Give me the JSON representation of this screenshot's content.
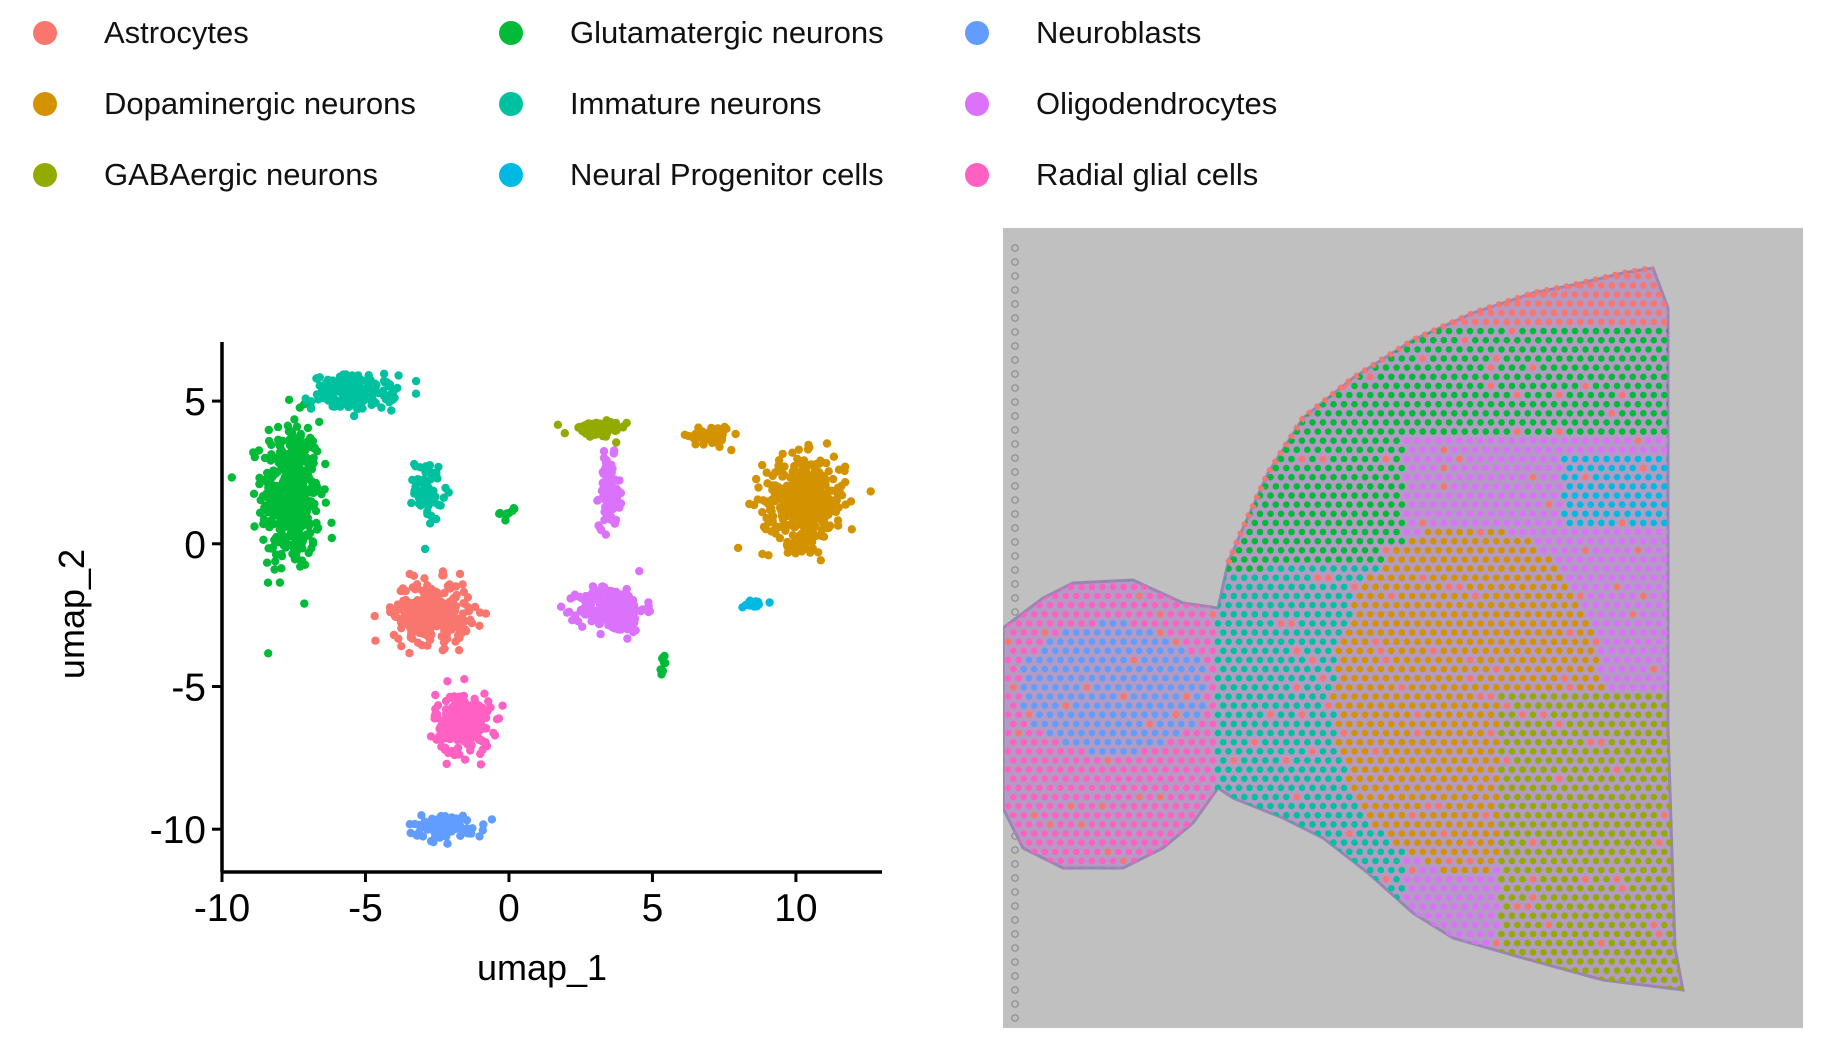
{
  "legend": {
    "placement": "top",
    "columns": 3,
    "items": [
      {
        "label": "Astrocytes",
        "color": "#F8766D"
      },
      {
        "label": "Dopaminergic neurons",
        "color": "#D39200"
      },
      {
        "label": "GABAergic neurons",
        "color": "#93AA00"
      },
      {
        "label": "Glutamatergic neurons",
        "color": "#00BA38"
      },
      {
        "label": "Immature neurons",
        "color": "#00C19F"
      },
      {
        "label": "Neural Progenitor cells",
        "color": "#00B9E3"
      },
      {
        "label": "Neuroblasts",
        "color": "#619CFF"
      },
      {
        "label": "Oligodendrocytes",
        "color": "#DB72FB"
      },
      {
        "label": "Radial glial cells",
        "color": "#FF61C3"
      }
    ]
  },
  "chart_data": [
    {
      "type": "scatter",
      "title": "",
      "xlabel": "umap_1",
      "ylabel": "umap_2",
      "xlim": [
        -10,
        13
      ],
      "ylim": [
        -11.5,
        7
      ],
      "xticks": [
        "-10",
        "-5",
        "0",
        "5",
        "10"
      ],
      "yticks": [
        "-10",
        "-5",
        "0",
        "5"
      ],
      "grid": false,
      "clusters": [
        {
          "name": "Glutamatergic neurons",
          "center": [
            -7.6,
            1.7
          ],
          "spread": [
            0.85,
            2.2
          ],
          "n": 420
        },
        {
          "name": "Glutamatergic neurons",
          "center": [
            0.0,
            1.1
          ],
          "spread": [
            0.25,
            0.2
          ],
          "n": 10
        },
        {
          "name": "Glutamatergic neurons",
          "center": [
            5.4,
            -4.2
          ],
          "spread": [
            0.15,
            0.25
          ],
          "n": 8
        },
        {
          "name": "Immature neurons",
          "center": [
            -5.4,
            5.3
          ],
          "spread": [
            1.2,
            0.5
          ],
          "n": 170
        },
        {
          "name": "Immature neurons",
          "center": [
            -2.8,
            1.9
          ],
          "spread": [
            0.4,
            0.9
          ],
          "n": 60
        },
        {
          "name": "GABAergic neurons",
          "center": [
            3.0,
            4.0
          ],
          "spread": [
            0.9,
            0.25
          ],
          "n": 60
        },
        {
          "name": "Oligodendrocytes",
          "center": [
            3.5,
            1.8
          ],
          "spread": [
            0.3,
            1.0
          ],
          "n": 90
        },
        {
          "name": "Oligodendrocytes",
          "center": [
            3.6,
            -2.3
          ],
          "spread": [
            0.95,
            0.65
          ],
          "n": 240
        },
        {
          "name": "Dopaminergic neurons",
          "center": [
            10.3,
            1.5
          ],
          "spread": [
            1.2,
            1.3
          ],
          "n": 380
        },
        {
          "name": "Dopaminergic neurons",
          "center": [
            7.0,
            3.8
          ],
          "spread": [
            0.6,
            0.3
          ],
          "n": 50
        },
        {
          "name": "Astrocytes",
          "center": [
            -2.7,
            -2.4
          ],
          "spread": [
            1.1,
            0.9
          ],
          "n": 270
        },
        {
          "name": "Radial glial cells",
          "center": [
            -1.6,
            -6.3
          ],
          "spread": [
            0.8,
            0.9
          ],
          "n": 230
        },
        {
          "name": "Neuroblasts",
          "center": [
            -2.2,
            -9.9
          ],
          "spread": [
            1.1,
            0.35
          ],
          "n": 90
        },
        {
          "name": "Neural Progenitor cells",
          "center": [
            8.5,
            -2.1
          ],
          "spread": [
            0.35,
            0.12
          ],
          "n": 18
        }
      ]
    },
    {
      "type": "spatial",
      "title": "",
      "regions": [
        {
          "name": "Astrocytes",
          "description": "outer rim of the cortex and scattered spots"
        },
        {
          "name": "Glutamatergic neurons",
          "description": "large upper cortical region"
        },
        {
          "name": "Immature neurons",
          "description": "band between cortex and midbrain"
        },
        {
          "name": "Oligodendrocytes",
          "description": "right-middle region"
        },
        {
          "name": "Dopaminergic neurons",
          "description": "central lower region"
        },
        {
          "name": "GABAergic neurons",
          "description": "lower right corner"
        },
        {
          "name": "Neural Progenitor cells",
          "description": "small patch upper right"
        },
        {
          "name": "Neuroblasts",
          "description": "center of the left bulb"
        },
        {
          "name": "Radial glial cells",
          "description": "left bulb"
        }
      ]
    }
  ]
}
